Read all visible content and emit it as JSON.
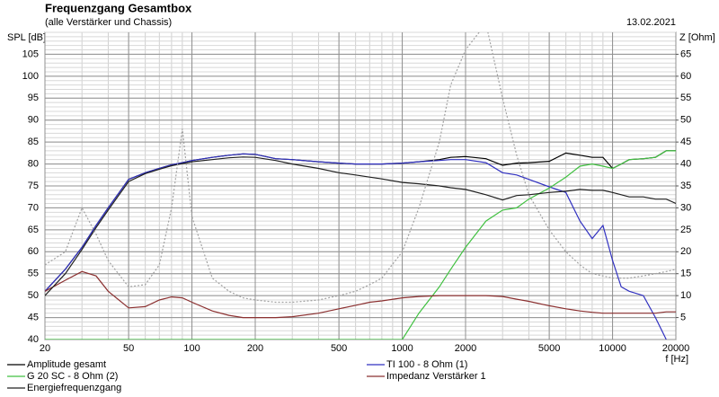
{
  "chart_data": {
    "type": "line",
    "title": "Frequenzgang Gesamtbox",
    "subtitle": "(alle Verstärker und Chassis)",
    "date": "13.02.2021",
    "y_label": "SPL [dB]",
    "y2_label": "Z [Ohm]",
    "x_label": "f [Hz]",
    "log_x": true,
    "grid": true,
    "xlim": [
      20,
      20000
    ],
    "ylim": [
      40,
      110
    ],
    "y2lim": [
      0,
      70
    ],
    "xticks": [
      20,
      50,
      100,
      200,
      500,
      1000,
      2000,
      5000,
      10000,
      20000
    ],
    "yticks": [
      40,
      45,
      50,
      55,
      60,
      65,
      70,
      75,
      80,
      85,
      90,
      95,
      100,
      105
    ],
    "y2ticks": [
      5,
      10,
      15,
      20,
      25,
      30,
      35,
      40,
      45,
      50,
      55,
      60,
      65
    ],
    "x": [
      20,
      25,
      30,
      35,
      40,
      50,
      60,
      70,
      80,
      90,
      100,
      125,
      150,
      175,
      200,
      250,
      300,
      400,
      500,
      600,
      700,
      800,
      1000,
      1200,
      1500,
      1700,
      2000,
      2500,
      3000,
      3500,
      4000,
      5000,
      6000,
      7000,
      8000,
      9000,
      10000,
      11000,
      12000,
      14000,
      16000,
      18000,
      20000
    ],
    "series": [
      {
        "name": "Amplitude gesamt",
        "color": "#000000",
        "values": [
          51,
          56,
          61,
          66,
          70,
          76.5,
          78,
          79,
          79.8,
          80.3,
          80.8,
          81.5,
          82,
          82.3,
          82.2,
          81.2,
          81,
          80.5,
          80.2,
          80,
          80,
          80,
          80.2,
          80.5,
          81,
          81.5,
          81.7,
          81.2,
          79.7,
          80.2,
          80.3,
          80.6,
          82.5,
          82,
          81.5,
          81.5,
          79,
          80,
          81,
          81.2,
          81.5,
          83,
          83
        ]
      },
      {
        "name": "TI 100 - 8 Ohm (1)",
        "color": "#3030c0",
        "values": [
          51,
          56,
          61,
          66,
          70,
          76.5,
          78,
          79,
          79.8,
          80.3,
          80.8,
          81.5,
          82,
          82.3,
          82.2,
          81.2,
          81,
          80.5,
          80.2,
          80,
          80,
          80,
          80.2,
          80.5,
          80.8,
          81,
          81,
          80.3,
          78,
          77.5,
          76.5,
          74.8,
          73.5,
          67,
          63,
          66,
          58,
          52,
          51,
          50,
          45,
          40,
          null
        ]
      },
      {
        "name": "G 20 SC - 8 Ohm (2)",
        "color": "#40c040",
        "values": [
          40,
          40,
          40,
          40,
          40,
          40,
          40,
          40,
          40,
          40,
          40,
          40,
          40,
          40,
          40,
          40,
          40,
          40,
          40,
          40,
          40,
          40,
          40,
          46,
          52,
          56,
          61,
          67,
          69.5,
          70,
          72,
          74.5,
          77,
          79.5,
          80,
          79.5,
          79,
          80,
          81,
          81.2,
          81.5,
          83,
          83
        ]
      },
      {
        "name": "Impedanz Verstärker 1",
        "color": "#8b3030",
        "axis": "y2",
        "values": [
          11,
          13.5,
          15.5,
          14.5,
          11,
          7.2,
          7.5,
          9,
          9.7,
          9.5,
          8.5,
          6.5,
          5.5,
          5,
          5,
          5,
          5.2,
          6,
          7,
          7.8,
          8.5,
          8.8,
          9.5,
          9.8,
          10,
          10,
          10,
          10,
          9.8,
          9.2,
          8.7,
          7.7,
          7,
          6.5,
          6.2,
          6,
          6,
          6,
          6,
          6,
          6,
          6.3,
          6.3
        ]
      },
      {
        "name": "Energiefrequenzgang",
        "color": "#202020",
        "values": [
          50,
          55,
          60.5,
          65.5,
          69.5,
          76,
          77.8,
          78.8,
          79.6,
          80.1,
          80.5,
          81,
          81.4,
          81.6,
          81.5,
          80.8,
          80,
          79,
          78,
          77.5,
          77,
          76.6,
          75.8,
          75.5,
          75,
          74.6,
          74.2,
          73,
          71.8,
          72.8,
          73,
          73.5,
          73.8,
          74.2,
          74,
          74,
          73.5,
          73,
          72.5,
          72.5,
          72,
          72,
          71
        ]
      },
      {
        "color": "#a0a0a0",
        "dashed": true,
        "axis": "y2",
        "values": [
          17,
          20,
          30,
          24,
          18,
          12,
          12.5,
          17,
          30,
          48,
          28,
          14,
          11,
          9.5,
          9,
          8.5,
          8.5,
          9,
          10,
          11,
          12.5,
          14,
          20,
          30,
          45,
          58,
          66,
          72,
          55,
          42,
          33,
          25,
          20,
          17,
          15,
          14.5,
          14,
          14,
          14,
          14.5,
          15,
          15.5,
          16
        ]
      }
    ]
  }
}
